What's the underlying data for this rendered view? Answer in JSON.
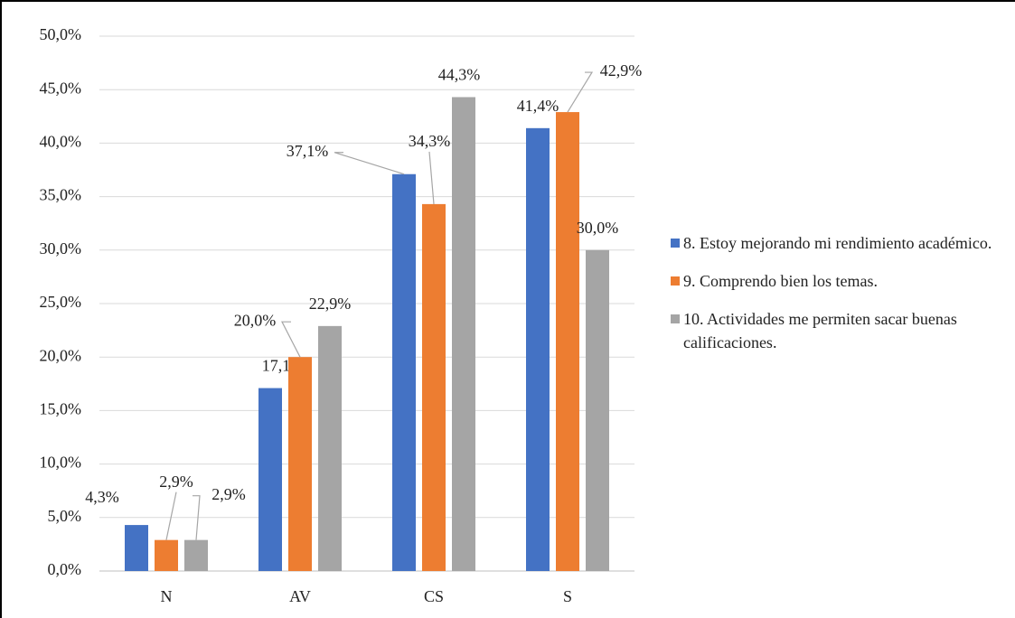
{
  "chart_data": {
    "type": "bar",
    "categories": [
      "N",
      "AV",
      "CS",
      "S"
    ],
    "series": [
      {
        "name": "8. Estoy mejorando mi rendimiento académico.",
        "color": "#4472c4",
        "values": [
          4.3,
          17.1,
          37.1,
          41.4
        ],
        "value_labels": [
          "4,3%",
          "17,1%",
          "37,1%",
          "41,4%"
        ]
      },
      {
        "name": "9. Comprendo bien los temas.",
        "color": "#ed7d31",
        "values": [
          2.9,
          20.0,
          34.3,
          42.9
        ],
        "value_labels": [
          "2,9%",
          "20,0%",
          "34,3%",
          "42,9%"
        ]
      },
      {
        "name": "10. Actividades me permiten sacar buenas calificaciones.",
        "color": "#a5a5a5",
        "values": [
          2.9,
          22.9,
          44.3,
          30.0
        ],
        "value_labels": [
          "2,9%",
          "22,9%",
          "44,3%",
          "30,0%"
        ]
      }
    ],
    "ylim": [
      0,
      50
    ],
    "yticks": [
      {
        "value": 0,
        "label": "0,0%"
      },
      {
        "value": 5,
        "label": "5,0%"
      },
      {
        "value": 10,
        "label": "10,0%"
      },
      {
        "value": 15,
        "label": "15,0%"
      },
      {
        "value": 20,
        "label": "20,0%"
      },
      {
        "value": 25,
        "label": "25,0%"
      },
      {
        "value": 30,
        "label": "30,0%"
      },
      {
        "value": 35,
        "label": "35,0%"
      },
      {
        "value": 40,
        "label": "40,0%"
      },
      {
        "value": 45,
        "label": "45,0%"
      },
      {
        "value": 50,
        "label": "50,0%"
      }
    ],
    "grid": true,
    "legend": "right"
  }
}
